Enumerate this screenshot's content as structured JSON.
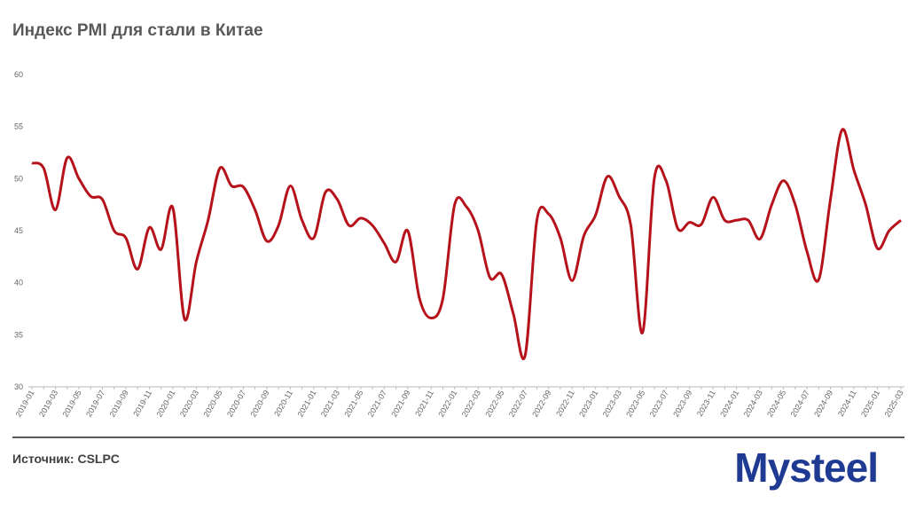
{
  "chart_data": {
    "type": "line",
    "title": "Индекс PMI для стали в Китае",
    "source": "Источник: CSLPC",
    "logo": "Mysteel",
    "categories": [
      "2019-01",
      null,
      "2019-03",
      null,
      "2019-05",
      null,
      "2019-07",
      null,
      "2019-09",
      null,
      "2019-11",
      null,
      "2020-01",
      null,
      "2020-03",
      null,
      "2020-05",
      null,
      "2020-07",
      null,
      "2020-09",
      null,
      "2020-11",
      null,
      "2021-01",
      null,
      "2021-03",
      null,
      "2021-05",
      null,
      "2021-07",
      null,
      "2021-09",
      null,
      "2021-11",
      null,
      "2022-01",
      null,
      "2022-03",
      null,
      "2022-05",
      null,
      "2022-07",
      null,
      "2022-09",
      null,
      "2022-11",
      null,
      "2023-01",
      null,
      "2023-03",
      null,
      "2023-05",
      null,
      "2023-07",
      null,
      "2023-09",
      null,
      "2023-11",
      null,
      "2024-01",
      null,
      "2024-03",
      null,
      "2024-05",
      null,
      "2024-07",
      null,
      "2024-09",
      null,
      "2024-11",
      null,
      "2025-01",
      null,
      "2025-03"
    ],
    "series": [
      {
        "color": "#b5121b",
        "values": [
          51.5,
          51,
          47,
          52,
          50,
          48.3,
          48,
          45,
          44.3,
          41.3,
          45.3,
          43.2,
          47.2,
          36.5,
          42,
          46,
          51,
          49.3,
          49.2,
          47,
          44,
          45.5,
          49.3,
          46,
          44.3,
          48.7,
          48,
          45.5,
          46.2,
          45.5,
          43.8,
          42,
          45,
          38.5,
          36.6,
          38.5,
          47.5,
          47.3,
          45,
          40.5,
          40.8,
          37,
          33,
          46,
          46.6,
          44.3,
          40.2,
          44.5,
          46.5,
          50.2,
          48.3,
          45.5,
          35.2,
          50,
          49.8,
          45.2,
          45.8,
          45.6,
          48.2,
          46,
          46,
          46,
          44.2,
          47.5,
          49.8,
          47.5,
          43,
          40.3,
          48,
          54.7,
          50.8,
          47.5,
          43.3,
          45,
          46
        ]
      }
    ],
    "ylim": [
      30,
      60
    ],
    "yticks": [
      30,
      35,
      40,
      45,
      50,
      55,
      60
    ],
    "grid": false
  }
}
